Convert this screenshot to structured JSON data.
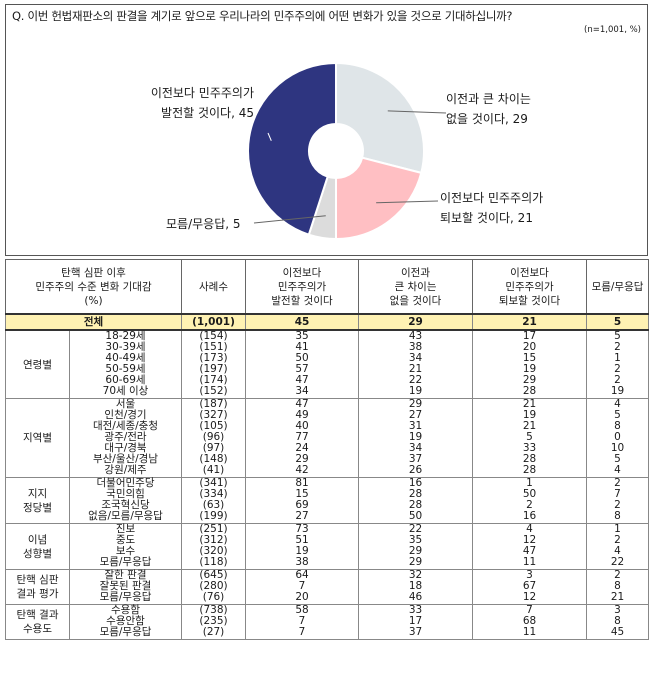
{
  "question": "Q. 이번 헌법재판소의 판결을 계기로 앞으로 우리나라의 민주주의에 어떤 변화가 있을 것으로 기대하십니까?",
  "note": "(n=1,001, %)",
  "colors": {
    "improve": "#2e3580",
    "same": "#dfe5e8",
    "worse": "#ffbfc3",
    "dk": "#dcdcdc",
    "total_bg": "#fff2b3"
  },
  "chart_data": {
    "type": "pie",
    "donut": true,
    "slices": [
      {
        "label": "이전과 큰 차이는 없을 것이다",
        "label_lines": [
          "이전과 큰 차이는",
          "없을 것이다, 29"
        ],
        "value": 29
      },
      {
        "label": "이전보다 민주주의가 퇴보할 것이다",
        "label_lines": [
          "이전보다 민주주의가",
          "퇴보할 것이다, 21"
        ],
        "value": 21
      },
      {
        "label": "모름/무응답",
        "label_lines": [
          "모름/무응답, 5"
        ],
        "value": 5
      },
      {
        "label": "이전보다 민주주의가 발전할 것이다",
        "label_lines": [
          "이전보다 민주주의가",
          "발전할 것이다, 45"
        ],
        "value": 45
      }
    ]
  },
  "table": {
    "headers": {
      "category": [
        "탄핵 심판 이후",
        "민주주의 수준 변화 기대감",
        "(%)"
      ],
      "n": [
        "사례수"
      ],
      "improve": [
        "이전보다",
        "민주주의가",
        "발전할 것이다"
      ],
      "same": [
        "이전과",
        "큰 차이는",
        "없을 것이다"
      ],
      "worse": [
        "이전보다",
        "민주주의가",
        "퇴보할 것이다"
      ],
      "dk": [
        "모름/무응답"
      ]
    },
    "total": {
      "label": "전체",
      "n": "(1,001)",
      "improve": "45",
      "same": "29",
      "worse": "21",
      "dk": "5"
    },
    "groups": [
      {
        "label": [
          "연령별"
        ],
        "rows": [
          {
            "label": "18-29세",
            "n": "(154)",
            "v": [
              "35",
              "43",
              "17",
              "5"
            ]
          },
          {
            "label": "30-39세",
            "n": "(151)",
            "v": [
              "41",
              "38",
              "20",
              "2"
            ]
          },
          {
            "label": "40-49세",
            "n": "(173)",
            "v": [
              "50",
              "34",
              "15",
              "1"
            ]
          },
          {
            "label": "50-59세",
            "n": "(197)",
            "v": [
              "57",
              "21",
              "19",
              "2"
            ]
          },
          {
            "label": "60-69세",
            "n": "(174)",
            "v": [
              "47",
              "22",
              "29",
              "2"
            ]
          },
          {
            "label": "70세 이상",
            "n": "(152)",
            "v": [
              "34",
              "19",
              "28",
              "19"
            ]
          }
        ]
      },
      {
        "label": [
          "지역별"
        ],
        "rows": [
          {
            "label": "서울",
            "n": "(187)",
            "v": [
              "47",
              "29",
              "21",
              "4"
            ]
          },
          {
            "label": "인천/경기",
            "n": "(327)",
            "v": [
              "49",
              "27",
              "19",
              "5"
            ]
          },
          {
            "label": "대전/세종/충청",
            "n": "(105)",
            "v": [
              "40",
              "31",
              "21",
              "8"
            ]
          },
          {
            "label": "광주/전라",
            "n": "(96)",
            "v": [
              "77",
              "19",
              "5",
              "0"
            ]
          },
          {
            "label": "대구/경북",
            "n": "(97)",
            "v": [
              "24",
              "34",
              "33",
              "10"
            ]
          },
          {
            "label": "부산/울산/경남",
            "n": "(148)",
            "v": [
              "29",
              "37",
              "28",
              "5"
            ]
          },
          {
            "label": "강원/제주",
            "n": "(41)",
            "v": [
              "42",
              "26",
              "28",
              "4"
            ]
          }
        ]
      },
      {
        "label": [
          "지지",
          "정당별"
        ],
        "rows": [
          {
            "label": "더불어민주당",
            "n": "(341)",
            "v": [
              "81",
              "16",
              "1",
              "2"
            ]
          },
          {
            "label": "국민의힘",
            "n": "(334)",
            "v": [
              "15",
              "28",
              "50",
              "7"
            ]
          },
          {
            "label": "조국혁신당",
            "n": "(63)",
            "v": [
              "69",
              "28",
              "2",
              "2"
            ]
          },
          {
            "label": "없음/모름/무응답",
            "n": "(199)",
            "v": [
              "27",
              "50",
              "16",
              "8"
            ]
          }
        ]
      },
      {
        "label": [
          "이념",
          "성향별"
        ],
        "rows": [
          {
            "label": "진보",
            "n": "(251)",
            "v": [
              "73",
              "22",
              "4",
              "1"
            ]
          },
          {
            "label": "중도",
            "n": "(312)",
            "v": [
              "51",
              "35",
              "12",
              "2"
            ]
          },
          {
            "label": "보수",
            "n": "(320)",
            "v": [
              "19",
              "29",
              "47",
              "4"
            ]
          },
          {
            "label": "모름/무응답",
            "n": "(118)",
            "v": [
              "38",
              "29",
              "11",
              "22"
            ]
          }
        ]
      },
      {
        "label": [
          "탄핵 심판",
          "결과 평가"
        ],
        "rows": [
          {
            "label": "잘한 판결",
            "n": "(645)",
            "v": [
              "64",
              "32",
              "3",
              "2"
            ]
          },
          {
            "label": "잘못된 판결",
            "n": "(280)",
            "v": [
              "7",
              "18",
              "67",
              "8"
            ]
          },
          {
            "label": "모름/무응답",
            "n": "(76)",
            "v": [
              "20",
              "46",
              "12",
              "21"
            ]
          }
        ]
      },
      {
        "label": [
          "탄핵 결과",
          "수용도"
        ],
        "rows": [
          {
            "label": "수용함",
            "n": "(738)",
            "v": [
              "58",
              "33",
              "7",
              "3"
            ]
          },
          {
            "label": "수용안함",
            "n": "(235)",
            "v": [
              "7",
              "17",
              "68",
              "8"
            ]
          },
          {
            "label": "모름/무응답",
            "n": "(27)",
            "v": [
              "7",
              "37",
              "11",
              "45"
            ]
          }
        ]
      }
    ]
  }
}
